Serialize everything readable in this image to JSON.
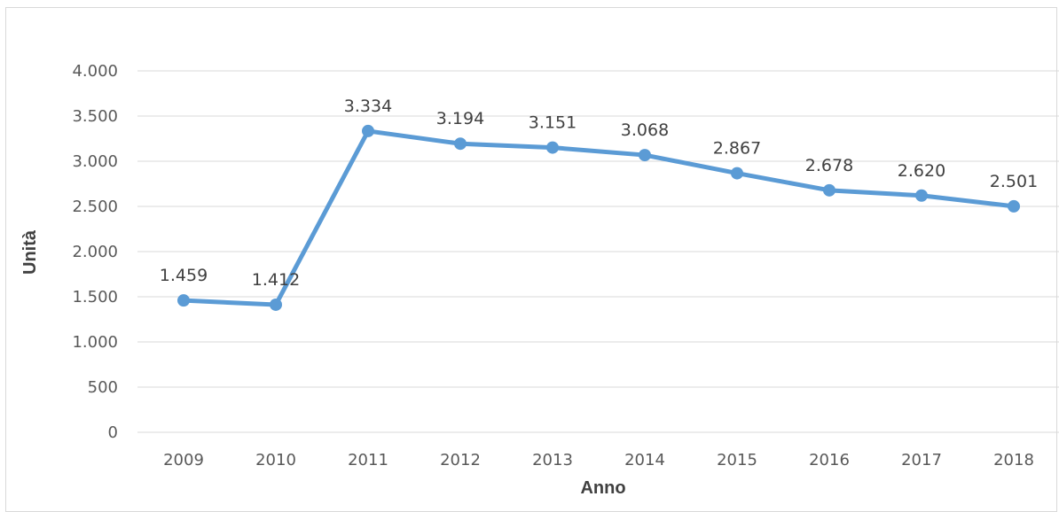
{
  "chart_data": {
    "type": "line",
    "title": "",
    "xlabel": "Anno",
    "ylabel": "Unità",
    "categories": [
      "2009",
      "2010",
      "2011",
      "2012",
      "2013",
      "2014",
      "2015",
      "2016",
      "2017",
      "2018"
    ],
    "series": [
      {
        "values": [
          1459,
          1412,
          3334,
          3194,
          3151,
          3068,
          2867,
          2678,
          2620,
          2501
        ],
        "data_labels": [
          "1.459",
          "1.412",
          "3.334",
          "3.194",
          "3.151",
          "3.068",
          "2.867",
          "2.678",
          "2.620",
          "2.501"
        ],
        "color": "#5b9bd5"
      }
    ],
    "ylim": [
      0,
      4000
    ],
    "yticks": [
      0,
      500,
      1000,
      1500,
      2000,
      2500,
      3000,
      3500,
      4000
    ],
    "ytick_labels": [
      "0",
      "500",
      "1.000",
      "1.500",
      "2.000",
      "2.500",
      "3.000",
      "3.500",
      "4.000"
    ],
    "grid": true,
    "legend": "none",
    "colors": {
      "line": "#5b9bd5",
      "grid": "#d9d9d9",
      "tick_text": "#595959",
      "label_text": "#404040"
    }
  }
}
